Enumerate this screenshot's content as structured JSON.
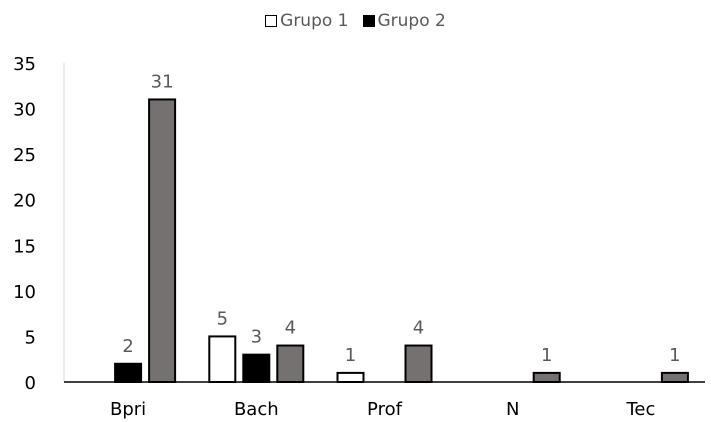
{
  "chart_data": {
    "type": "bar",
    "categories": [
      "Bpri",
      "Bach",
      "Prof",
      "N",
      "Tec"
    ],
    "series": [
      {
        "name": "Grupo 1",
        "color": "#ffffff",
        "values": [
          null,
          5,
          1,
          null,
          null
        ]
      },
      {
        "name": "Grupo 2",
        "color": "#000000",
        "values": [
          2,
          3,
          null,
          null,
          null
        ]
      },
      {
        "color": "#767171",
        "values": [
          31,
          4,
          4,
          1,
          1
        ]
      }
    ],
    "data_labels": [
      [
        "",
        "5",
        "1",
        "",
        ""
      ],
      [
        "2",
        "3",
        "",
        "",
        ""
      ],
      [
        "31",
        "4",
        "4",
        "1",
        "1"
      ]
    ],
    "ylim": [
      0,
      35
    ],
    "yticks": [
      0,
      5,
      10,
      15,
      20,
      25,
      30,
      35
    ],
    "legend_position": "top",
    "grid": false
  }
}
